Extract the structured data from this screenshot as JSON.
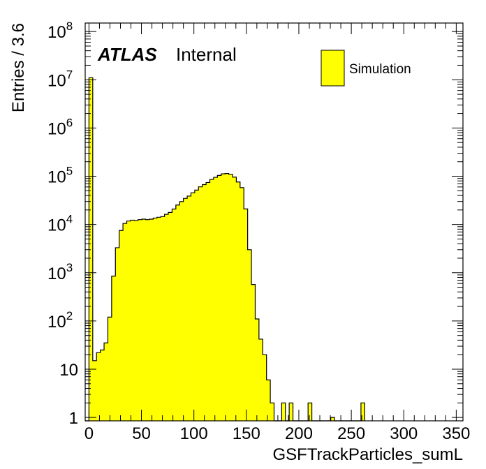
{
  "chart_data": {
    "type": "histogram",
    "xlabel": "GSFTrackParticles_sumL",
    "ylabel": "Entries / 3.6",
    "xlim": [
      -3.6,
      356.4
    ],
    "ylim": [
      0.85,
      150000000
    ],
    "yscale": "log",
    "bin_width": 3.6,
    "x_ticks": [
      0,
      50,
      100,
      150,
      200,
      250,
      300,
      350
    ],
    "x_tick_labels": [
      "0",
      "50",
      "100",
      "150",
      "200",
      "250",
      "300",
      "350"
    ],
    "y_ticks": [
      1,
      10,
      100,
      1000,
      10000,
      100000,
      1000000,
      10000000,
      100000000
    ],
    "y_tick_labels": [
      {
        "base": "1",
        "exp": ""
      },
      {
        "base": "10",
        "exp": ""
      },
      {
        "base": "10",
        "exp": "2"
      },
      {
        "base": "10",
        "exp": "3"
      },
      {
        "base": "10",
        "exp": "4"
      },
      {
        "base": "10",
        "exp": "5"
      },
      {
        "base": "10",
        "exp": "6"
      },
      {
        "base": "10",
        "exp": "7"
      },
      {
        "base": "10",
        "exp": "8"
      }
    ],
    "series": [
      {
        "name": "Simulation",
        "color": "#ffff00",
        "edge_color": "#000000",
        "bin_lows": [
          -3.6,
          0,
          3.6,
          7.2,
          10.8,
          14.4,
          18,
          21.6,
          25.2,
          28.8,
          32.4,
          36,
          39.6,
          43.2,
          46.8,
          50.4,
          54,
          57.6,
          61.2,
          64.8,
          68.4,
          72,
          75.6,
          79.2,
          82.8,
          86.4,
          90,
          93.6,
          97.2,
          100.8,
          104.4,
          108,
          111.6,
          115.2,
          118.8,
          122.4,
          126,
          129.6,
          133.2,
          136.8,
          140.4,
          144,
          147.6,
          151.2,
          154.8,
          158.4,
          162,
          165.6,
          169.2,
          172.8,
          176.4,
          180,
          183.6,
          187.2,
          190.8,
          194.4,
          198,
          201.6,
          205.2,
          208.8,
          212.4,
          216,
          219.6,
          223.2,
          226.8,
          230.4,
          234,
          237.6,
          241.2,
          244.8,
          248.4,
          252,
          255.6,
          259.2
        ],
        "values": [
          0,
          11000000,
          15,
          22,
          25,
          35,
          120,
          850,
          3300,
          7500,
          10500,
          11800,
          12300,
          12100,
          12600,
          12900,
          12600,
          12900,
          13600,
          14100,
          14600,
          16200,
          17800,
          20900,
          25300,
          29800,
          34700,
          38800,
          45500,
          51600,
          60300,
          67100,
          74300,
          86000,
          95000,
          104000,
          112000,
          114000,
          110000,
          96000,
          76000,
          58000,
          21000,
          3000,
          570,
          110,
          42,
          20,
          6,
          2,
          0,
          0,
          2,
          0,
          2,
          0,
          0,
          0,
          0,
          2,
          0,
          0,
          0,
          0,
          0,
          1,
          0,
          0,
          0,
          0,
          0,
          0,
          0,
          2
        ]
      }
    ],
    "legend": {
      "position": "top-right",
      "entries": [
        "Simulation"
      ]
    },
    "grid": false
  },
  "annotations": {
    "experiment": "ATLAS",
    "status": "Internal"
  }
}
